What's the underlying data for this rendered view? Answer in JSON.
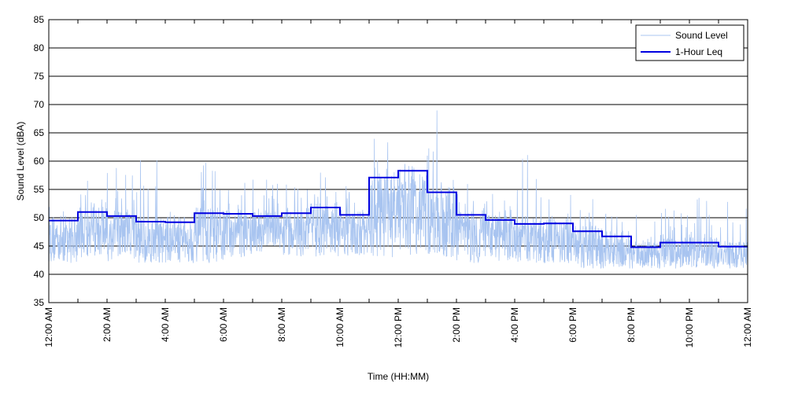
{
  "chart_data": {
    "type": "line",
    "title": "",
    "xlabel": "Time (HH:MM)",
    "ylabel": "Sound Level (dBA)",
    "ylim": [
      35,
      85
    ],
    "yticks": [
      35,
      40,
      45,
      50,
      55,
      60,
      65,
      70,
      75,
      80,
      85
    ],
    "xlim_hours": [
      0,
      24
    ],
    "xtick_hours": [
      0,
      2,
      4,
      6,
      8,
      10,
      12,
      14,
      16,
      18,
      20,
      22,
      24
    ],
    "xtick_labels": [
      "12:00 AM",
      "2:00 AM",
      "4:00 AM",
      "6:00 AM",
      "8:00 AM",
      "10:00 AM",
      "12:00 PM",
      "2:00 PM",
      "4:00 PM",
      "6:00 PM",
      "8:00 PM",
      "10:00 PM",
      "12:00 AM"
    ],
    "grid": "horizontal",
    "legend_position": "top-right",
    "series": [
      {
        "name": "Sound Level",
        "style": "thin-light-line",
        "color": "#a8c4f0",
        "hourly_ranges": [
          {
            "hour": 0,
            "min": 42,
            "max": 52
          },
          {
            "hour": 1,
            "min": 43,
            "max": 57
          },
          {
            "hour": 2,
            "min": 42,
            "max": 59
          },
          {
            "hour": 3,
            "min": 42,
            "max": 61
          },
          {
            "hour": 4,
            "min": 42,
            "max": 52
          },
          {
            "hour": 5,
            "min": 42,
            "max": 60
          },
          {
            "hour": 6,
            "min": 43,
            "max": 58
          },
          {
            "hour": 7,
            "min": 44,
            "max": 57
          },
          {
            "hour": 8,
            "min": 43,
            "max": 56
          },
          {
            "hour": 9,
            "min": 43,
            "max": 59
          },
          {
            "hour": 10,
            "min": 43,
            "max": 56
          },
          {
            "hour": 11,
            "min": 43,
            "max": 69
          },
          {
            "hour": 12,
            "min": 43,
            "max": 60
          },
          {
            "hour": 13,
            "min": 43,
            "max": 69
          },
          {
            "hour": 14,
            "min": 42,
            "max": 56
          },
          {
            "hour": 15,
            "min": 42,
            "max": 56
          },
          {
            "hour": 16,
            "min": 42,
            "max": 62
          },
          {
            "hour": 17,
            "min": 42,
            "max": 55
          },
          {
            "hour": 18,
            "min": 41,
            "max": 55
          },
          {
            "hour": 19,
            "min": 41,
            "max": 51
          },
          {
            "hour": 20,
            "min": 41,
            "max": 51
          },
          {
            "hour": 21,
            "min": 41,
            "max": 52
          },
          {
            "hour": 22,
            "min": 41,
            "max": 54
          },
          {
            "hour": 23,
            "min": 41,
            "max": 53
          }
        ]
      },
      {
        "name": "1-Hour Leq",
        "style": "step",
        "color": "#0000e0",
        "x_hours": [
          0,
          1,
          2,
          3,
          4,
          5,
          6,
          7,
          8,
          9,
          10,
          11,
          12,
          13,
          14,
          15,
          16,
          17,
          18,
          19,
          20,
          21,
          22,
          23
        ],
        "values": [
          49.5,
          51.0,
          50.3,
          49.3,
          49.2,
          50.8,
          50.7,
          50.3,
          50.8,
          51.8,
          50.5,
          57.1,
          58.3,
          54.5,
          50.5,
          49.6,
          48.9,
          49.0,
          47.6,
          46.7,
          44.8,
          45.6,
          45.6,
          44.9
        ]
      }
    ]
  }
}
